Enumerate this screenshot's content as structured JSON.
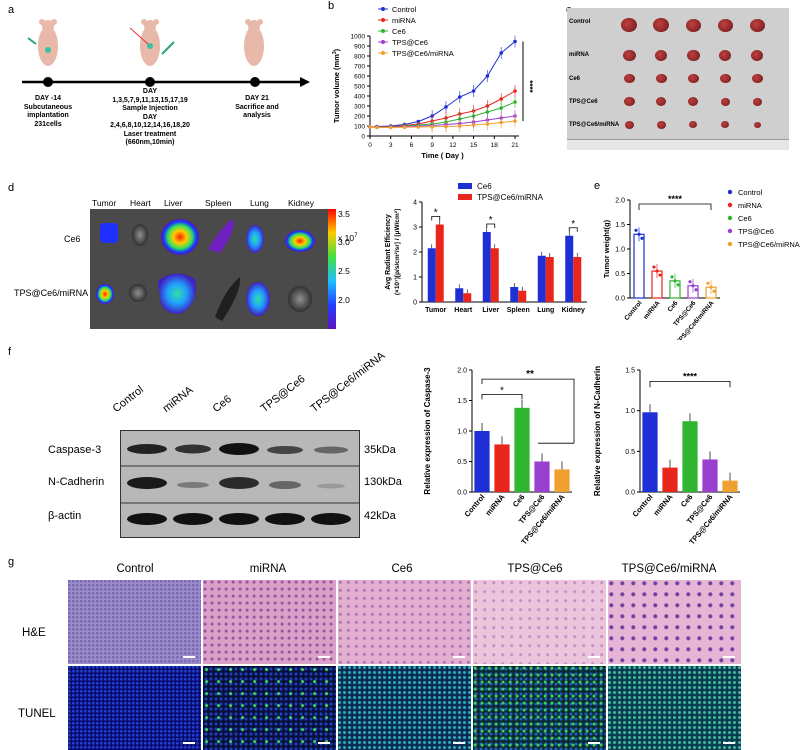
{
  "panels": {
    "a": "a",
    "b": "b",
    "c": "c",
    "d": "d",
    "e": "e",
    "f": "f",
    "g": "g"
  },
  "timeline": {
    "events": [
      {
        "lines": [
          "DAY -14",
          "Subcutaneous",
          "implantation",
          "231cells"
        ]
      },
      {
        "lines": [
          "DAY",
          "1,3,5,7,9,11,13,15,17,19",
          "Sample Injection",
          "DAY",
          "2,4,6,8,10,12,14,16,18,20",
          "Laser treatment",
          "(660nm,10min)"
        ]
      },
      {
        "lines": [
          "DAY 21",
          "Sacrifice and",
          "analysis"
        ]
      }
    ]
  },
  "groups": [
    "Control",
    "miRNA",
    "Ce6",
    "TPS@Ce6",
    "TPS@Ce6/miRNA"
  ],
  "colors": {
    "control": "#1f2fd6",
    "mirna": "#e8261c",
    "ce6": "#2fb52f",
    "tpsce6": "#9b3fd1",
    "tpsce6mirna": "#f0a030"
  },
  "panel_c_rows": [
    "Control",
    "miRNA",
    "Ce6",
    "TPS@Ce6",
    "TPS@Ce6/miRNA"
  ],
  "panel_d": {
    "organs": [
      "Tumor",
      "Heart",
      "Liver",
      "Spleen",
      "Lung",
      "Kidney"
    ],
    "rows": [
      "Ce6",
      "TPS@Ce6/miRNA"
    ],
    "colorbar_ticks": [
      "3.5",
      "3.0",
      "2.5",
      "2.0"
    ],
    "colorbar_unit": "x 10",
    "colorbar_exp": "7"
  },
  "chart_data": [
    {
      "id": "b",
      "type": "line",
      "xlabel": "Time ( Day )",
      "ylabel": "Tumor volume (mm",
      "ylabel_sup": "3",
      "ylabel_end": ")",
      "x": [
        0,
        1,
        3,
        5,
        7,
        9,
        11,
        13,
        15,
        17,
        19,
        21
      ],
      "xticks": [
        0,
        3,
        6,
        9,
        12,
        15,
        18,
        21
      ],
      "ylim": [
        0,
        1000
      ],
      "yticks": [
        0,
        100,
        200,
        300,
        400,
        500,
        600,
        700,
        800,
        900,
        1000
      ],
      "series": [
        {
          "name": "Control",
          "values": [
            90,
            95,
            100,
            115,
            145,
            200,
            290,
            390,
            450,
            600,
            830,
            945
          ]
        },
        {
          "name": "miRNA",
          "values": [
            90,
            92,
            95,
            105,
            120,
            150,
            180,
            220,
            250,
            300,
            370,
            450
          ]
        },
        {
          "name": "Ce6",
          "values": [
            90,
            90,
            92,
            100,
            110,
            120,
            140,
            170,
            200,
            240,
            280,
            340
          ]
        },
        {
          "name": "TPS@Ce6",
          "values": [
            90,
            88,
            90,
            95,
            100,
            105,
            115,
            125,
            140,
            160,
            180,
            200
          ]
        },
        {
          "name": "TPS@Ce6/miRNA",
          "values": [
            90,
            85,
            85,
            88,
            90,
            92,
            95,
            100,
            110,
            120,
            135,
            150
          ]
        }
      ],
      "annotation": "****"
    },
    {
      "id": "d",
      "type": "bar",
      "categories": [
        "Tumor",
        "Heart",
        "Liver",
        "Spleen",
        "Lung",
        "Kidney"
      ],
      "ylabel_line1": "Avg Radiant Efficiency",
      "ylabel_line2": "(×10⁷)[p/s/cm²/sr] / [μW/cm²]",
      "ylim": [
        0,
        4
      ],
      "yticks": [
        0,
        1,
        2,
        3,
        4
      ],
      "series": [
        {
          "name": "Ce6",
          "values": [
            2.15,
            0.55,
            2.8,
            0.6,
            1.85,
            2.65
          ]
        },
        {
          "name": "TPS@Ce6/miRNA",
          "values": [
            3.1,
            0.35,
            2.15,
            0.45,
            1.8,
            1.8
          ]
        }
      ],
      "significance": [
        {
          "category": "Tumor",
          "label": "*"
        },
        {
          "category": "Liver",
          "label": "*"
        },
        {
          "category": "Kidney",
          "label": "*"
        }
      ]
    },
    {
      "id": "e",
      "type": "bar",
      "categories": [
        "Control",
        "miRNA",
        "Ce6",
        "TPS@Ce6",
        "TPS@Ce6/miRNA"
      ],
      "ylabel": "Tumor weight(g)",
      "ylim": [
        0,
        2.0
      ],
      "yticks": [
        0.0,
        0.5,
        1.0,
        1.5,
        2.0
      ],
      "values": [
        1.3,
        0.55,
        0.35,
        0.25,
        0.22
      ],
      "annotation": "****"
    },
    {
      "id": "f1",
      "type": "bar",
      "categories": [
        "Control",
        "miRNA",
        "Ce6",
        "TPS@Ce6",
        "TPS@Ce6/miRNA"
      ],
      "ylabel": "Relative expression of Caspase-3",
      "ylim": [
        0,
        2.0
      ],
      "yticks": [
        0.0,
        0.5,
        1.0,
        1.5,
        2.0
      ],
      "values": [
        1.0,
        0.78,
        1.38,
        0.5,
        0.37
      ],
      "significance": [
        {
          "from": "Control",
          "to": "Ce6",
          "label": "*"
        },
        {
          "from": "Control",
          "to": "TPS@Ce6/miRNA",
          "label": "**"
        }
      ]
    },
    {
      "id": "f2",
      "type": "bar",
      "categories": [
        "Control",
        "miRNA",
        "Ce6",
        "TPS@Ce6",
        "TPS@Ce6/miRNA"
      ],
      "ylabel": "Relative expression of N-Cadherin",
      "ylim": [
        0,
        1.5
      ],
      "yticks": [
        0.0,
        0.5,
        1.0,
        1.5
      ],
      "values": [
        0.98,
        0.3,
        0.87,
        0.4,
        0.14
      ],
      "annotation": "****"
    }
  ],
  "western": {
    "lanes": [
      "Control",
      "miRNA",
      "Ce6",
      "TPS@Ce6",
      "TPS@Ce6/miRNA"
    ],
    "rows": [
      {
        "name": "Caspase-3",
        "kda": "35kDa"
      },
      {
        "name": "N-Cadherin",
        "kda": "130kDa"
      },
      {
        "name": "β-actin",
        "kda": "42kDa"
      }
    ]
  },
  "panel_g": {
    "columns": [
      "Control",
      "miRNA",
      "Ce6",
      "TPS@Ce6",
      "TPS@Ce6/miRNA"
    ],
    "rows": [
      "H&E",
      "TUNEL"
    ]
  }
}
